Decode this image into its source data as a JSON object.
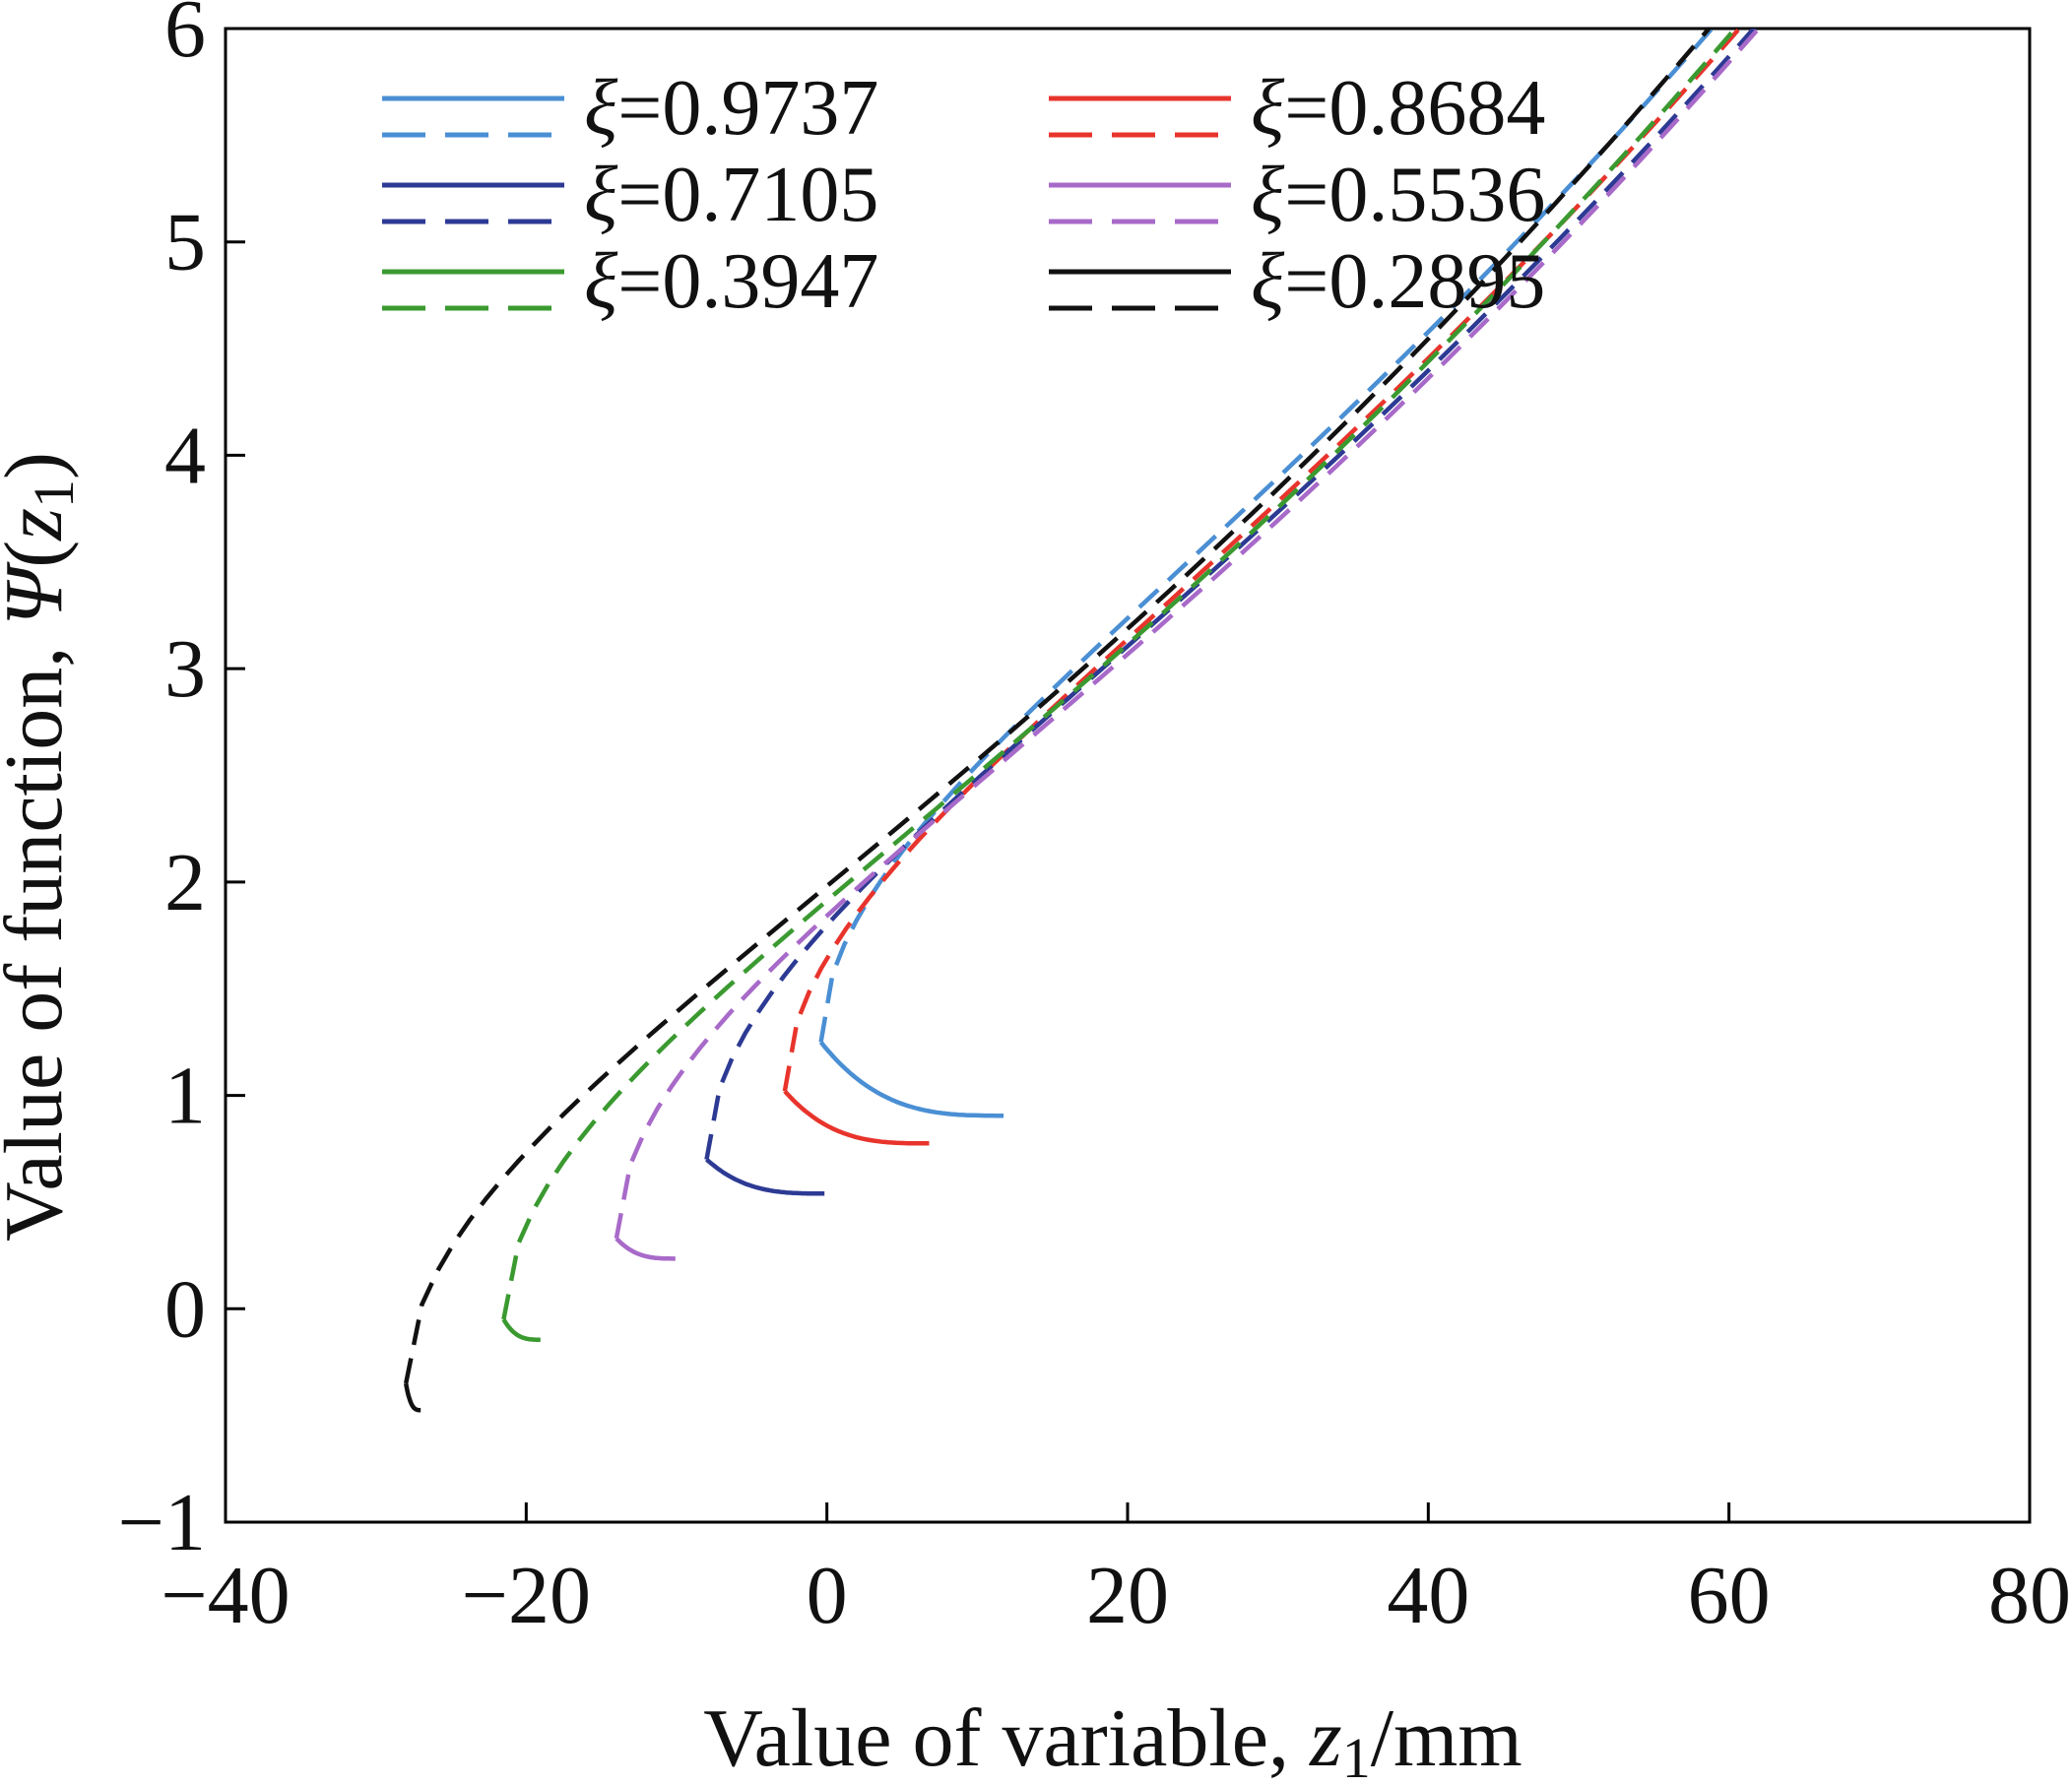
{
  "chart_data": {
    "type": "line",
    "title": "",
    "xlabel": {
      "prefix": "Value of variable, ",
      "var": "z",
      "sub": "1",
      "suffix": "/mm"
    },
    "ylabel": {
      "prefix": "Value of function, ",
      "var": "Ψ",
      "open": "(",
      "arg": "z",
      "sub": "1",
      "close": ")"
    },
    "xlim": [
      -40,
      80
    ],
    "ylim": [
      -1,
      6
    ],
    "xticks": [
      -40,
      -20,
      0,
      20,
      40,
      60,
      80
    ],
    "yticks": [
      -1,
      0,
      1,
      2,
      3,
      4,
      5,
      6
    ],
    "xtick_labels": [
      "−40",
      "−20",
      "0",
      "20",
      "40",
      "60",
      "80"
    ],
    "ytick_labels": [
      "−1",
      "0",
      "1",
      "2",
      "3",
      "4",
      "5",
      "6"
    ],
    "grid": false,
    "legend_position": "top-left",
    "legend_symbol": "ξ",
    "series": [
      {
        "xi": "0.9737",
        "label": "=0.9737",
        "color": "#4a8fd4",
        "z0": -0.4,
        "psi0": 1.25,
        "pmin": 0.905,
        "zmin": 12,
        "a": 0.0123,
        "b": 0.647,
        "k": 0.0515,
        "m": 0.00055
      },
      {
        "xi": "0.8684",
        "label": "=0.8684",
        "color": "#e8342c",
        "z0": -2.8,
        "psi0": 1.02,
        "pmin": 0.775,
        "zmin": 7,
        "a": 0.0133,
        "b": 0.609,
        "k": 0.0501,
        "m": 0.00053
      },
      {
        "xi": "0.7105",
        "label": "=0.7105",
        "color": "#2d3a94",
        "z0": -8.0,
        "psi0": 0.7,
        "pmin": 0.54,
        "zmin": 0,
        "a": 0.0143,
        "b": 0.512,
        "k": 0.0484,
        "m": 0.0005
      },
      {
        "xi": "0.5536",
        "label": "=0.5536",
        "color": "#a86ac9",
        "z0": -14.0,
        "psi0": 0.33,
        "pmin": 0.235,
        "zmin": -10,
        "a": 0.0148,
        "b": 0.389,
        "k": 0.0472,
        "m": 0.00048
      },
      {
        "xi": "0.3947",
        "label": "=0.3947",
        "color": "#3a9a30",
        "z0": -21.5,
        "psi0": -0.05,
        "pmin": -0.145,
        "zmin": -19,
        "a": 0.0154,
        "b": 0.154,
        "k": 0.046,
        "m": 0.00047
      },
      {
        "xi": "0.2895",
        "label": "=0.2895",
        "color": "#111111",
        "z0": -28.0,
        "psi0": -0.35,
        "pmin": -0.475,
        "zmin": -27,
        "a": 0.0158,
        "b": 0.054,
        "k": 0.0453,
        "m": 0.00046
      }
    ],
    "description": "For each xi, solid branch starts at turning point z0 and runs to z=78; dashed branch starts at z0 and rises. Solid curves converge near z≈58, Ψ≈1.38."
  }
}
